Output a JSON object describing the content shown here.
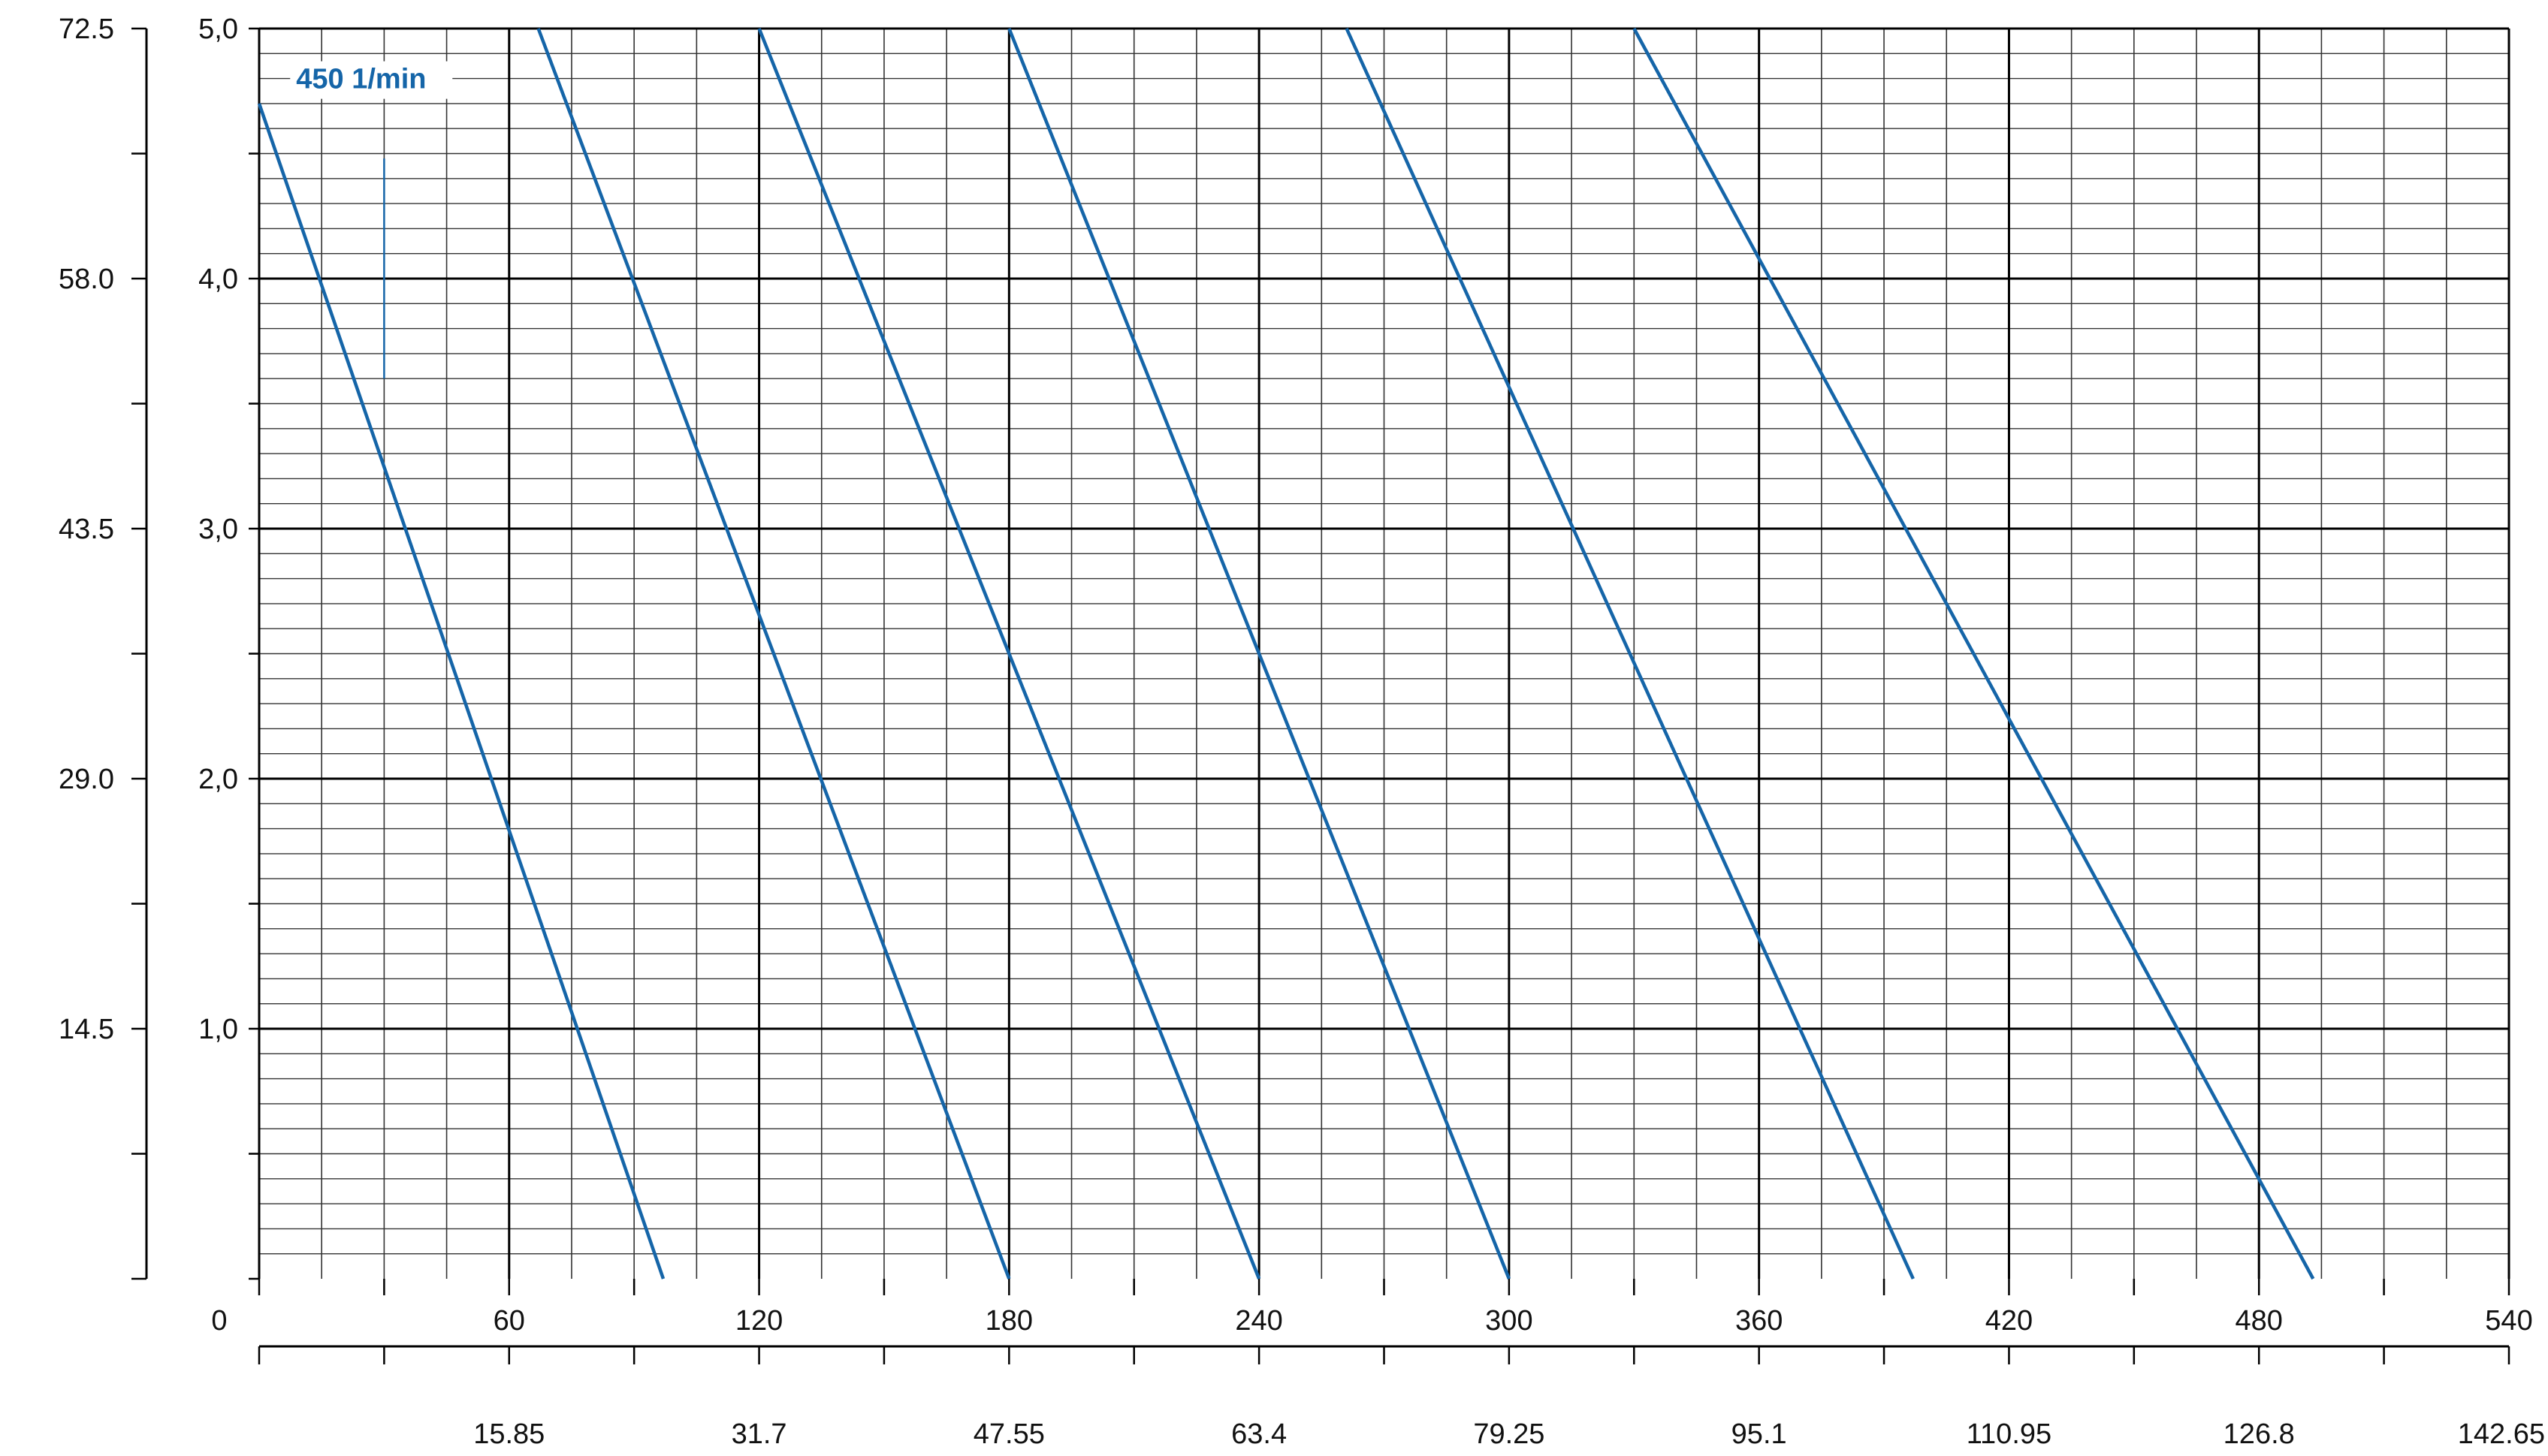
{
  "chart_data": {
    "type": "line",
    "title": "",
    "xlabel": "",
    "ylabel": "",
    "colors": {
      "series": "#1565a8",
      "grid_major": "#000000",
      "grid_minor": "#333333",
      "label_bg": "#ffffff"
    },
    "grid": true,
    "x_axis": {
      "range": [
        0,
        540
      ],
      "ticks": [
        0,
        60,
        120,
        180,
        240,
        300,
        360,
        420,
        480,
        540
      ],
      "tick_labels": [
        "0",
        "60",
        "120",
        "180",
        "240",
        "300",
        "360",
        "420",
        "480",
        "540"
      ],
      "minor_step": 15
    },
    "x_axis_secondary": {
      "range": [
        0,
        142.65
      ],
      "tick_labels": [
        "15.85",
        "31.7",
        "47.55",
        "63.4",
        "79.25",
        "95.1",
        "110.95",
        "126.8",
        "142.65"
      ]
    },
    "y_axis_inner": {
      "range": [
        0,
        5
      ],
      "tick_labels": [
        "1,0",
        "2,0",
        "3,0",
        "4,0",
        "5,0"
      ],
      "minor_step": 0.1
    },
    "y_axis_outer": {
      "range": [
        0,
        72.5
      ],
      "tick_labels": [
        "14.5",
        "29.0",
        "43.5",
        "58.0",
        "72.5"
      ]
    },
    "series": [
      {
        "points": [
          [
            0,
            4.7
          ],
          [
            97,
            0
          ]
        ]
      },
      {
        "points": [
          [
            67,
            5.0
          ],
          [
            180,
            0
          ]
        ]
      },
      {
        "points": [
          [
            120,
            5.0
          ],
          [
            240,
            0
          ]
        ]
      },
      {
        "points": [
          [
            180,
            5.0
          ],
          [
            300,
            0
          ]
        ]
      },
      {
        "points": [
          [
            261,
            5.0
          ],
          [
            397,
            0
          ]
        ]
      },
      {
        "points": [
          [
            330,
            5.0
          ],
          [
            493,
            0
          ]
        ]
      }
    ],
    "annotations": [
      {
        "text": "450 1/min",
        "x": 6,
        "y": 4.8,
        "leader": {
          "x": 30,
          "y_top": 4.48,
          "y_bottom": 3.6
        }
      }
    ]
  }
}
